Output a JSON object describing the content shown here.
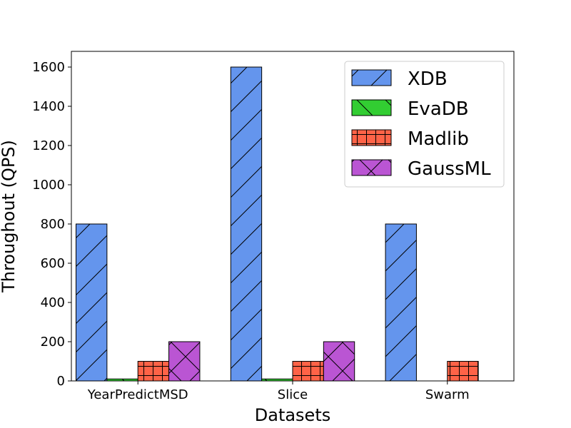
{
  "chart_data": {
    "type": "bar",
    "categories": [
      "YearPredictMSD",
      "Slice",
      "Swarm"
    ],
    "series": [
      {
        "name": "XDB",
        "values": [
          800,
          1600,
          800
        ],
        "color": "#6495ED",
        "hatch": "slash"
      },
      {
        "name": "EvaDB",
        "values": [
          10,
          10,
          0
        ],
        "color": "#32CD32",
        "hatch": "backslash"
      },
      {
        "name": "Madlib",
        "values": [
          100,
          100,
          100
        ],
        "color": "#FF6347",
        "hatch": "grid"
      },
      {
        "name": "GaussML",
        "values": [
          200,
          200,
          0
        ],
        "color": "#BA55D3",
        "hatch": "cross"
      }
    ],
    "title": "",
    "xlabel": "Datasets",
    "ylabel": "Throughout (QPS)",
    "ylim": [
      0,
      1680
    ],
    "yticks": [
      "0",
      "200",
      "400",
      "600",
      "800",
      "1000",
      "1200",
      "1400",
      "1600"
    ],
    "legend_position": "top-right",
    "grid": false
  }
}
